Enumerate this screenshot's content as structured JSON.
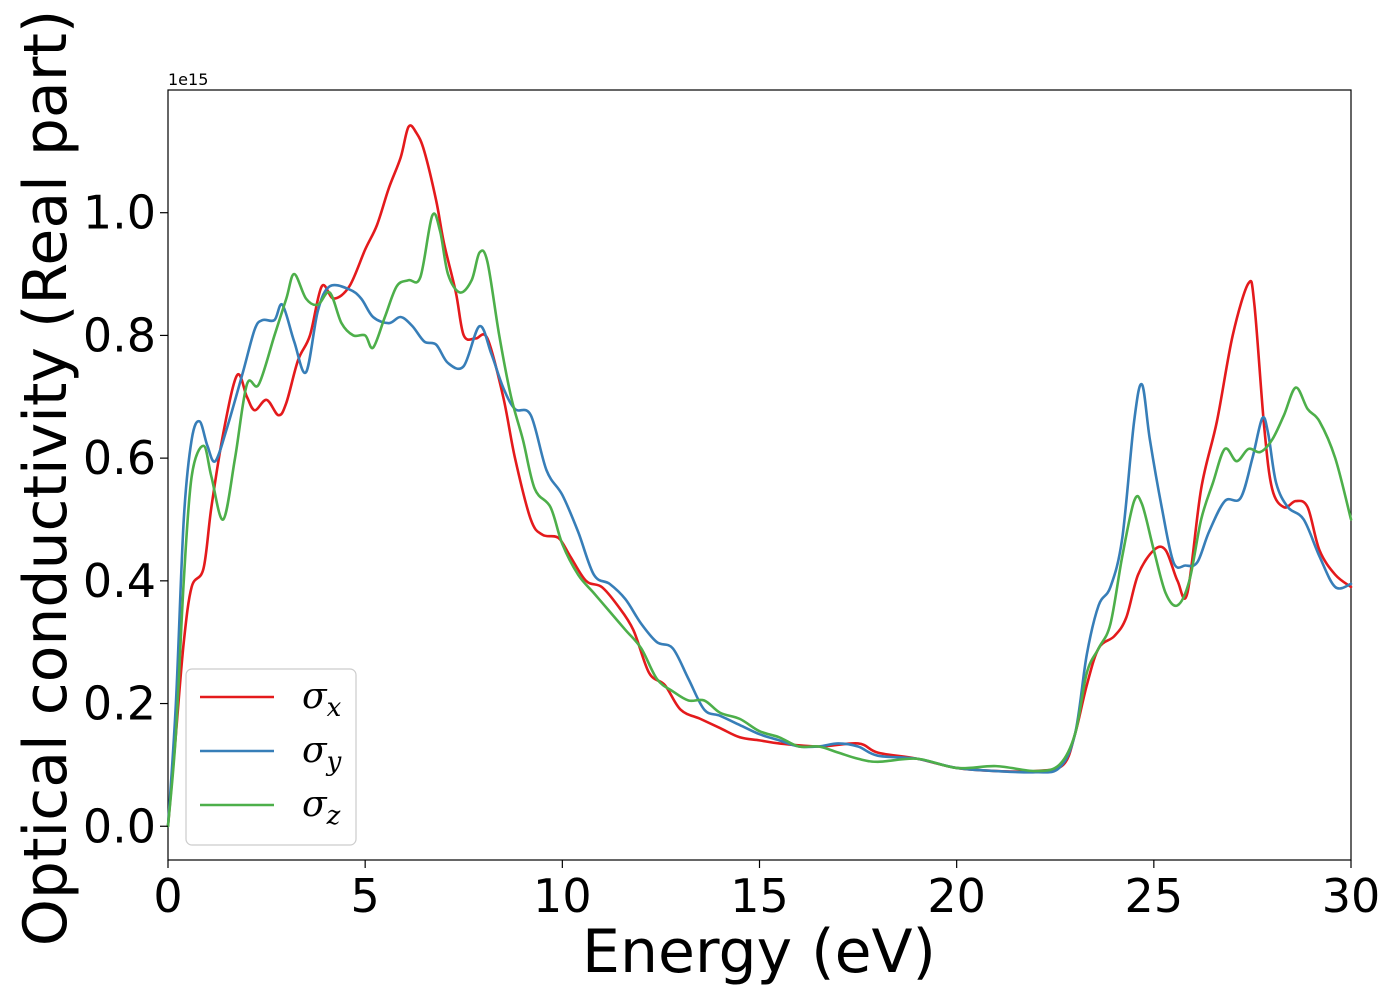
{
  "chart_data": {
    "type": "line",
    "title": "",
    "xlabel": "Energy (eV)",
    "ylabel": "Optical conductivity (Real part)",
    "y_offset_label": "1e15",
    "xlim": [
      0,
      30
    ],
    "ylim": [
      -0.055,
      1.2
    ],
    "x_ticks": [
      0,
      5,
      10,
      15,
      20,
      25,
      30
    ],
    "x_tick_labels": [
      "0",
      "5",
      "10",
      "15",
      "20",
      "25",
      "30"
    ],
    "y_ticks": [
      0.0,
      0.2,
      0.4,
      0.6,
      0.8,
      1.0
    ],
    "y_tick_labels": [
      "0.0",
      "0.2",
      "0.4",
      "0.6",
      "0.8",
      "1.0"
    ],
    "grid": false,
    "legend_position": "bottom-left",
    "series": [
      {
        "name": "σx",
        "symbol": "σ",
        "subscript": "x",
        "color": "#e41a1c",
        "points": [
          [
            0,
            0
          ],
          [
            0.2,
            0.15
          ],
          [
            0.4,
            0.3
          ],
          [
            0.6,
            0.39
          ],
          [
            0.9,
            0.42
          ],
          [
            1.1,
            0.52
          ],
          [
            1.4,
            0.64
          ],
          [
            1.75,
            0.735
          ],
          [
            2.0,
            0.7
          ],
          [
            2.2,
            0.678
          ],
          [
            2.5,
            0.695
          ],
          [
            2.8,
            0.67
          ],
          [
            3.0,
            0.69
          ],
          [
            3.3,
            0.76
          ],
          [
            3.6,
            0.8
          ],
          [
            3.9,
            0.88
          ],
          [
            4.2,
            0.86
          ],
          [
            4.6,
            0.88
          ],
          [
            5.0,
            0.94
          ],
          [
            5.3,
            0.98
          ],
          [
            5.6,
            1.04
          ],
          [
            5.9,
            1.09
          ],
          [
            6.1,
            1.14
          ],
          [
            6.3,
            1.13
          ],
          [
            6.5,
            1.1
          ],
          [
            6.8,
            1.02
          ],
          [
            7.0,
            0.95
          ],
          [
            7.3,
            0.87
          ],
          [
            7.5,
            0.8
          ],
          [
            7.8,
            0.795
          ],
          [
            8.1,
            0.795
          ],
          [
            8.5,
            0.7
          ],
          [
            8.8,
            0.6
          ],
          [
            9.2,
            0.5
          ],
          [
            9.5,
            0.475
          ],
          [
            9.9,
            0.47
          ],
          [
            10.2,
            0.44
          ],
          [
            10.6,
            0.4
          ],
          [
            11.0,
            0.39
          ],
          [
            11.4,
            0.36
          ],
          [
            11.8,
            0.32
          ],
          [
            12.2,
            0.25
          ],
          [
            12.6,
            0.23
          ],
          [
            13.0,
            0.19
          ],
          [
            13.5,
            0.175
          ],
          [
            14.0,
            0.16
          ],
          [
            14.5,
            0.145
          ],
          [
            15.0,
            0.14
          ],
          [
            15.5,
            0.135
          ],
          [
            16.5,
            0.13
          ],
          [
            17.5,
            0.135
          ],
          [
            18.0,
            0.12
          ],
          [
            19.0,
            0.11
          ],
          [
            20.0,
            0.095
          ],
          [
            21.0,
            0.09
          ],
          [
            22.0,
            0.09
          ],
          [
            22.7,
            0.1
          ],
          [
            23.0,
            0.15
          ],
          [
            23.3,
            0.23
          ],
          [
            23.6,
            0.29
          ],
          [
            24.0,
            0.31
          ],
          [
            24.3,
            0.34
          ],
          [
            24.6,
            0.41
          ],
          [
            25.0,
            0.45
          ],
          [
            25.3,
            0.45
          ],
          [
            25.6,
            0.4
          ],
          [
            25.85,
            0.38
          ],
          [
            26.2,
            0.55
          ],
          [
            26.6,
            0.66
          ],
          [
            27.0,
            0.8
          ],
          [
            27.4,
            0.885
          ],
          [
            27.55,
            0.85
          ],
          [
            27.8,
            0.65
          ],
          [
            28.0,
            0.55
          ],
          [
            28.3,
            0.52
          ],
          [
            28.6,
            0.53
          ],
          [
            28.9,
            0.52
          ],
          [
            29.2,
            0.45
          ],
          [
            29.6,
            0.41
          ],
          [
            30.0,
            0.39
          ]
        ]
      },
      {
        "name": "σy",
        "symbol": "σ",
        "subscript": "y",
        "color": "#377eb8",
        "points": [
          [
            0,
            0
          ],
          [
            0.2,
            0.2
          ],
          [
            0.4,
            0.5
          ],
          [
            0.6,
            0.63
          ],
          [
            0.8,
            0.66
          ],
          [
            1.0,
            0.62
          ],
          [
            1.2,
            0.595
          ],
          [
            1.5,
            0.65
          ],
          [
            1.9,
            0.74
          ],
          [
            2.2,
            0.81
          ],
          [
            2.4,
            0.825
          ],
          [
            2.7,
            0.825
          ],
          [
            2.9,
            0.85
          ],
          [
            3.2,
            0.79
          ],
          [
            3.5,
            0.74
          ],
          [
            3.8,
            0.84
          ],
          [
            4.1,
            0.88
          ],
          [
            4.6,
            0.875
          ],
          [
            4.9,
            0.86
          ],
          [
            5.2,
            0.83
          ],
          [
            5.6,
            0.82
          ],
          [
            5.9,
            0.83
          ],
          [
            6.2,
            0.815
          ],
          [
            6.5,
            0.79
          ],
          [
            6.8,
            0.785
          ],
          [
            7.1,
            0.755
          ],
          [
            7.5,
            0.75
          ],
          [
            7.9,
            0.815
          ],
          [
            8.2,
            0.77
          ],
          [
            8.5,
            0.715
          ],
          [
            8.8,
            0.68
          ],
          [
            9.2,
            0.67
          ],
          [
            9.6,
            0.58
          ],
          [
            10.0,
            0.54
          ],
          [
            10.4,
            0.48
          ],
          [
            10.8,
            0.41
          ],
          [
            11.2,
            0.395
          ],
          [
            11.6,
            0.37
          ],
          [
            12.0,
            0.33
          ],
          [
            12.4,
            0.3
          ],
          [
            12.8,
            0.29
          ],
          [
            13.2,
            0.24
          ],
          [
            13.6,
            0.19
          ],
          [
            14.0,
            0.18
          ],
          [
            14.5,
            0.165
          ],
          [
            15.0,
            0.15
          ],
          [
            15.5,
            0.14
          ],
          [
            16.0,
            0.13
          ],
          [
            16.5,
            0.13
          ],
          [
            17.0,
            0.135
          ],
          [
            17.5,
            0.13
          ],
          [
            18.0,
            0.115
          ],
          [
            19.0,
            0.11
          ],
          [
            20.0,
            0.095
          ],
          [
            21.0,
            0.09
          ],
          [
            22.0,
            0.088
          ],
          [
            22.6,
            0.095
          ],
          [
            23.0,
            0.15
          ],
          [
            23.3,
            0.28
          ],
          [
            23.6,
            0.36
          ],
          [
            23.9,
            0.39
          ],
          [
            24.2,
            0.47
          ],
          [
            24.5,
            0.66
          ],
          [
            24.7,
            0.72
          ],
          [
            24.9,
            0.63
          ],
          [
            25.2,
            0.52
          ],
          [
            25.5,
            0.43
          ],
          [
            25.8,
            0.425
          ],
          [
            26.1,
            0.43
          ],
          [
            26.4,
            0.48
          ],
          [
            26.8,
            0.53
          ],
          [
            27.2,
            0.535
          ],
          [
            27.5,
            0.6
          ],
          [
            27.75,
            0.665
          ],
          [
            27.9,
            0.64
          ],
          [
            28.1,
            0.56
          ],
          [
            28.4,
            0.52
          ],
          [
            28.8,
            0.5
          ],
          [
            29.2,
            0.44
          ],
          [
            29.6,
            0.39
          ],
          [
            30.0,
            0.395
          ]
        ]
      },
      {
        "name": "σz",
        "symbol": "σ",
        "subscript": "z",
        "color": "#4daf4a",
        "points": [
          [
            0,
            0
          ],
          [
            0.2,
            0.15
          ],
          [
            0.4,
            0.4
          ],
          [
            0.6,
            0.57
          ],
          [
            0.9,
            0.62
          ],
          [
            1.1,
            0.57
          ],
          [
            1.4,
            0.5
          ],
          [
            1.7,
            0.6
          ],
          [
            2.0,
            0.72
          ],
          [
            2.3,
            0.72
          ],
          [
            2.7,
            0.8
          ],
          [
            3.0,
            0.86
          ],
          [
            3.2,
            0.9
          ],
          [
            3.5,
            0.86
          ],
          [
            3.8,
            0.85
          ],
          [
            4.1,
            0.87
          ],
          [
            4.4,
            0.82
          ],
          [
            4.7,
            0.8
          ],
          [
            5.0,
            0.8
          ],
          [
            5.2,
            0.78
          ],
          [
            5.5,
            0.83
          ],
          [
            5.8,
            0.88
          ],
          [
            6.1,
            0.89
          ],
          [
            6.4,
            0.895
          ],
          [
            6.7,
            0.995
          ],
          [
            6.9,
            0.97
          ],
          [
            7.1,
            0.9
          ],
          [
            7.4,
            0.87
          ],
          [
            7.7,
            0.89
          ],
          [
            7.9,
            0.935
          ],
          [
            8.1,
            0.92
          ],
          [
            8.4,
            0.8
          ],
          [
            8.7,
            0.7
          ],
          [
            9.0,
            0.63
          ],
          [
            9.3,
            0.55
          ],
          [
            9.7,
            0.52
          ],
          [
            10.0,
            0.46
          ],
          [
            10.4,
            0.41
          ],
          [
            10.8,
            0.38
          ],
          [
            11.2,
            0.35
          ],
          [
            11.6,
            0.32
          ],
          [
            12.0,
            0.29
          ],
          [
            12.4,
            0.24
          ],
          [
            12.8,
            0.22
          ],
          [
            13.2,
            0.205
          ],
          [
            13.6,
            0.205
          ],
          [
            14.0,
            0.185
          ],
          [
            14.5,
            0.175
          ],
          [
            15.0,
            0.155
          ],
          [
            15.5,
            0.145
          ],
          [
            16.0,
            0.13
          ],
          [
            16.5,
            0.13
          ],
          [
            17.0,
            0.12
          ],
          [
            17.5,
            0.11
          ],
          [
            18.0,
            0.105
          ],
          [
            19.0,
            0.11
          ],
          [
            20.0,
            0.095
          ],
          [
            21.0,
            0.098
          ],
          [
            22.0,
            0.09
          ],
          [
            22.6,
            0.1
          ],
          [
            23.0,
            0.15
          ],
          [
            23.3,
            0.25
          ],
          [
            23.6,
            0.29
          ],
          [
            23.9,
            0.33
          ],
          [
            24.2,
            0.44
          ],
          [
            24.5,
            0.53
          ],
          [
            24.7,
            0.525
          ],
          [
            25.0,
            0.45
          ],
          [
            25.3,
            0.38
          ],
          [
            25.6,
            0.36
          ],
          [
            25.9,
            0.4
          ],
          [
            26.2,
            0.5
          ],
          [
            26.5,
            0.56
          ],
          [
            26.8,
            0.615
          ],
          [
            27.1,
            0.595
          ],
          [
            27.4,
            0.615
          ],
          [
            27.7,
            0.61
          ],
          [
            28.0,
            0.63
          ],
          [
            28.3,
            0.67
          ],
          [
            28.6,
            0.715
          ],
          [
            28.9,
            0.68
          ],
          [
            29.2,
            0.66
          ],
          [
            29.6,
            0.6
          ],
          [
            30.0,
            0.5
          ]
        ]
      }
    ]
  }
}
